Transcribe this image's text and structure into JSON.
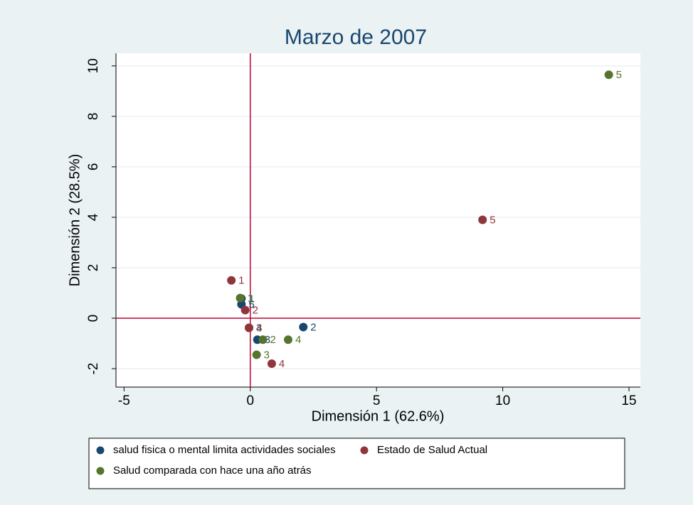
{
  "chart_data": {
    "type": "scatter",
    "title": "Marzo de 2007",
    "x_label": "Dimensión 1 (62.6%)",
    "y_label": "Dimensión 2 (28.5%)",
    "xlim": [
      -5.32,
      15.45
    ],
    "ylim": [
      -2.73,
      10.5
    ],
    "xticks": [
      -5,
      0,
      5,
      10,
      15
    ],
    "yticks": [
      -2,
      0,
      2,
      4,
      6,
      8,
      10
    ],
    "grid": true,
    "reference_lines": {
      "x": 0,
      "y": 0,
      "color": "#c10534"
    },
    "legend_position": "bottom",
    "series": [
      {
        "name": "salud fisica o mental limita actividades sociales",
        "color": "#1a476f",
        "x": [
          -0.35,
          2.1,
          0.28,
          -0.05,
          -0.35
        ],
        "values": [
          0.78,
          -0.35,
          -0.85,
          -0.38,
          0.55
        ],
        "labels": [
          "1",
          "2",
          "3",
          "4",
          "5"
        ]
      },
      {
        "name": "Estado de Salud Actual",
        "color": "#90353b",
        "x": [
          -0.75,
          -0.2,
          -0.05,
          0.85,
          9.2
        ],
        "values": [
          1.5,
          0.32,
          -0.38,
          -1.8,
          3.9
        ],
        "labels": [
          "1",
          "2",
          "3",
          "4",
          "5"
        ]
      },
      {
        "name": "Salud comparada con hace una año atrás",
        "color": "#55752f",
        "x": [
          -0.4,
          0.5,
          0.25,
          1.5,
          14.2
        ],
        "values": [
          0.8,
          -0.85,
          -1.45,
          -0.85,
          9.65
        ],
        "labels": [
          "1",
          "2",
          "3",
          "4",
          "5"
        ]
      }
    ]
  }
}
